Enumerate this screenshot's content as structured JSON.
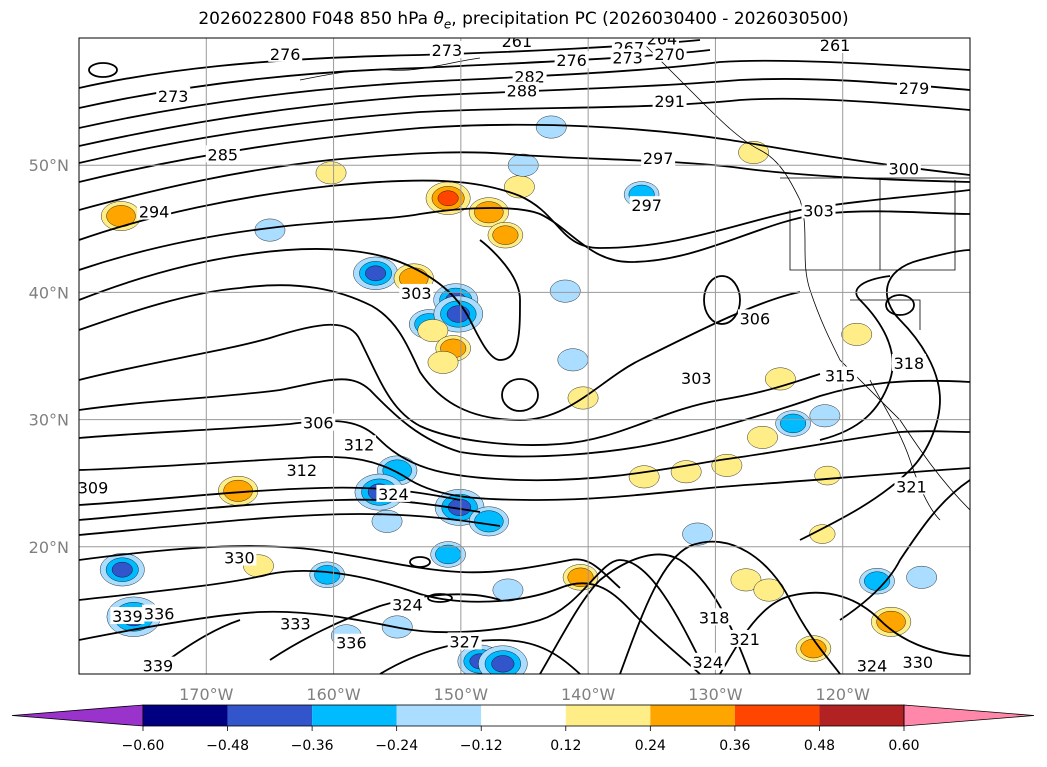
{
  "title": {
    "prefix": "2026022800 F048 850 hPa ",
    "variable_symbol": "θ",
    "variable_subscript": "e",
    "suffix": ", precipitation PC (2026030400 - 2026030500)"
  },
  "chart_data": {
    "type": "heatmap",
    "description_kind": "map",
    "latitude_ticks": [
      "50°N",
      "40°N",
      "30°N",
      "20°N"
    ],
    "latitude_values": [
      50,
      40,
      30,
      20
    ],
    "longitude_ticks": [
      "170°W",
      "160°W",
      "150°W",
      "140°W",
      "130°W",
      "120°W"
    ],
    "longitude_values": [
      -170,
      -160,
      -150,
      -140,
      -130,
      -120
    ],
    "lat_range": [
      10,
      60
    ],
    "lon_range": [
      -180,
      -110
    ],
    "grid": true,
    "colorbar": {
      "orientation": "horizontal",
      "extend": "both",
      "ticks": [
        "−0.60",
        "−0.48",
        "−0.36",
        "−0.24",
        "−0.12",
        "0.12",
        "0.24",
        "0.36",
        "0.48",
        "0.60"
      ],
      "bounds": [
        -0.6,
        -0.48,
        -0.36,
        -0.24,
        -0.12,
        0.12,
        0.24,
        0.36,
        0.48,
        0.6
      ],
      "colors": [
        "#9933cc",
        "#000080",
        "#3355cc",
        "#00bbff",
        "#aaddff",
        "#ffffff",
        "#ffee88",
        "#ffa500",
        "#ff4500",
        "#b22222",
        "#ff88aa"
      ]
    },
    "theta_e_contour_labels": [
      {
        "text": "276",
        "lon": -163.8,
        "lat": 58.6
      },
      {
        "text": "273",
        "lon": -151.1,
        "lat": 58.9
      },
      {
        "text": "261",
        "lon": -145.6,
        "lat": 59.6
      },
      {
        "text": "267",
        "lon": -136.8,
        "lat": 59.1
      },
      {
        "text": "264",
        "lon": -134.2,
        "lat": 59.8
      },
      {
        "text": "273",
        "lon": -136.9,
        "lat": 58.3
      },
      {
        "text": "270",
        "lon": -133.6,
        "lat": 58.6
      },
      {
        "text": "261",
        "lon": -120.6,
        "lat": 59.3
      },
      {
        "text": "276",
        "lon": -141.3,
        "lat": 58.1
      },
      {
        "text": "282",
        "lon": -144.6,
        "lat": 56.8
      },
      {
        "text": "288",
        "lon": -145.2,
        "lat": 55.7
      },
      {
        "text": "279",
        "lon": -114.4,
        "lat": 55.9
      },
      {
        "text": "273",
        "lon": -172.6,
        "lat": 55.3
      },
      {
        "text": "291",
        "lon": -133.6,
        "lat": 54.9
      },
      {
        "text": "285",
        "lon": -168.7,
        "lat": 50.7
      },
      {
        "text": "297",
        "lon": -134.5,
        "lat": 50.4
      },
      {
        "text": "300",
        "lon": -115.2,
        "lat": 49.6
      },
      {
        "text": "294",
        "lon": -174.1,
        "lat": 46.2
      },
      {
        "text": "297",
        "lon": -135.4,
        "lat": 46.7
      },
      {
        "text": "303",
        "lon": -121.9,
        "lat": 46.3
      },
      {
        "text": "303",
        "lon": -153.5,
        "lat": 39.8
      },
      {
        "text": "306",
        "lon": -126.9,
        "lat": 37.8
      },
      {
        "text": "315",
        "lon": -120.2,
        "lat": 33.3
      },
      {
        "text": "318",
        "lon": -114.8,
        "lat": 34.3
      },
      {
        "text": "303",
        "lon": -131.5,
        "lat": 33.1
      },
      {
        "text": "306",
        "lon": -161.2,
        "lat": 29.6
      },
      {
        "text": "312",
        "lon": -158.0,
        "lat": 27.9
      },
      {
        "text": "312",
        "lon": -162.5,
        "lat": 25.9
      },
      {
        "text": "309",
        "lon": -178.9,
        "lat": 24.5
      },
      {
        "text": "324",
        "lon": -155.3,
        "lat": 24.0
      },
      {
        "text": "321",
        "lon": -114.6,
        "lat": 24.6
      },
      {
        "text": "330",
        "lon": -167.4,
        "lat": 19.0
      },
      {
        "text": "336",
        "lon": -173.7,
        "lat": 14.6
      },
      {
        "text": "324",
        "lon": -154.2,
        "lat": 15.3
      },
      {
        "text": "339",
        "lon": -176.2,
        "lat": 14.4
      },
      {
        "text": "333",
        "lon": -163.0,
        "lat": 13.8
      },
      {
        "text": "336",
        "lon": -158.6,
        "lat": 12.3
      },
      {
        "text": "327",
        "lon": -149.7,
        "lat": 12.4
      },
      {
        "text": "318",
        "lon": -130.1,
        "lat": 14.3
      },
      {
        "text": "321",
        "lon": -127.7,
        "lat": 12.6
      },
      {
        "text": "324",
        "lon": -130.6,
        "lat": 10.8
      },
      {
        "text": "324",
        "lon": -117.7,
        "lat": 10.5
      },
      {
        "text": "330",
        "lon": -114.1,
        "lat": 10.8
      },
      {
        "text": "339",
        "lon": -173.8,
        "lat": 10.5
      }
    ],
    "precip_blobs": [
      {
        "lon": -176.7,
        "lat": 46.0,
        "value": 0.36
      },
      {
        "lon": -147.8,
        "lat": 46.3,
        "value": 0.36
      },
      {
        "lon": -151.0,
        "lat": 47.4,
        "value": 0.42
      },
      {
        "lon": -146.5,
        "lat": 44.5,
        "value": 0.3
      },
      {
        "lon": -145.4,
        "lat": 48.3,
        "value": 0.24
      },
      {
        "lon": -160.2,
        "lat": 49.4,
        "value": 0.24
      },
      {
        "lon": -127.0,
        "lat": 51.0,
        "value": 0.24
      },
      {
        "lon": -142.9,
        "lat": 53.0,
        "value": -0.24
      },
      {
        "lon": -145.1,
        "lat": 50.0,
        "value": -0.24
      },
      {
        "lon": -135.8,
        "lat": 47.7,
        "value": -0.3
      },
      {
        "lon": -165.0,
        "lat": 44.9,
        "value": -0.24
      },
      {
        "lon": -156.7,
        "lat": 41.5,
        "value": -0.42
      },
      {
        "lon": -153.7,
        "lat": 41.1,
        "value": 0.36
      },
      {
        "lon": -150.4,
        "lat": 39.4,
        "value": -0.42
      },
      {
        "lon": -152.5,
        "lat": 37.5,
        "value": -0.36
      },
      {
        "lon": -150.2,
        "lat": 38.3,
        "value": -0.48
      },
      {
        "lon": -152.2,
        "lat": 37.0,
        "value": 0.24
      },
      {
        "lon": -150.6,
        "lat": 35.6,
        "value": 0.3
      },
      {
        "lon": -151.4,
        "lat": 34.5,
        "value": 0.24
      },
      {
        "lon": -141.8,
        "lat": 40.1,
        "value": -0.24
      },
      {
        "lon": -141.2,
        "lat": 34.7,
        "value": -0.24
      },
      {
        "lon": -155.0,
        "lat": 26.0,
        "value": -0.36
      },
      {
        "lon": -156.4,
        "lat": 24.3,
        "value": -0.48
      },
      {
        "lon": -150.1,
        "lat": 23.1,
        "value": -0.48
      },
      {
        "lon": -147.8,
        "lat": 22.0,
        "value": -0.36
      },
      {
        "lon": -151.0,
        "lat": 19.4,
        "value": -0.3
      },
      {
        "lon": -155.8,
        "lat": 22.0,
        "value": -0.24
      },
      {
        "lon": -176.6,
        "lat": 18.2,
        "value": -0.42
      },
      {
        "lon": -165.9,
        "lat": 18.5,
        "value": 0.24
      },
      {
        "lon": -160.5,
        "lat": 17.8,
        "value": -0.3
      },
      {
        "lon": -175.7,
        "lat": 14.5,
        "value": -0.54
      },
      {
        "lon": -159.0,
        "lat": 13.0,
        "value": -0.24
      },
      {
        "lon": -155.0,
        "lat": 13.7,
        "value": -0.24
      },
      {
        "lon": -146.3,
        "lat": 16.6,
        "value": -0.24
      },
      {
        "lon": -148.5,
        "lat": 11.0,
        "value": -0.42
      },
      {
        "lon": -146.7,
        "lat": 10.8,
        "value": -0.48
      },
      {
        "lon": -140.6,
        "lat": 17.6,
        "value": 0.3
      },
      {
        "lon": -167.5,
        "lat": 24.4,
        "value": 0.36
      },
      {
        "lon": -135.6,
        "lat": 25.5,
        "value": 0.24
      },
      {
        "lon": -132.3,
        "lat": 25.9,
        "value": 0.24
      },
      {
        "lon": -129.1,
        "lat": 26.4,
        "value": 0.24
      },
      {
        "lon": -121.2,
        "lat": 25.6,
        "value": 0.18
      },
      {
        "lon": -131.4,
        "lat": 21.0,
        "value": -0.24
      },
      {
        "lon": -127.6,
        "lat": 17.4,
        "value": 0.24
      },
      {
        "lon": -125.8,
        "lat": 16.6,
        "value": 0.24
      },
      {
        "lon": -117.3,
        "lat": 17.3,
        "value": -0.3
      },
      {
        "lon": -113.8,
        "lat": 17.6,
        "value": -0.24
      },
      {
        "lon": -116.2,
        "lat": 14.1,
        "value": 0.36
      },
      {
        "lon": -122.3,
        "lat": 12.0,
        "value": 0.3
      },
      {
        "lon": -123.9,
        "lat": 29.7,
        "value": -0.3
      },
      {
        "lon": -121.4,
        "lat": 30.3,
        "value": -0.24
      },
      {
        "lon": -124.9,
        "lat": 33.2,
        "value": 0.24
      },
      {
        "lon": -126.3,
        "lat": 28.6,
        "value": 0.24
      },
      {
        "lon": -118.9,
        "lat": 36.7,
        "value": 0.24
      },
      {
        "lon": -140.4,
        "lat": 31.7,
        "value": 0.24
      },
      {
        "lon": -165.1,
        "lat": 27.9,
        "value": 0.12
      },
      {
        "lon": -121.6,
        "lat": 21.0,
        "value": 0.18
      }
    ]
  }
}
